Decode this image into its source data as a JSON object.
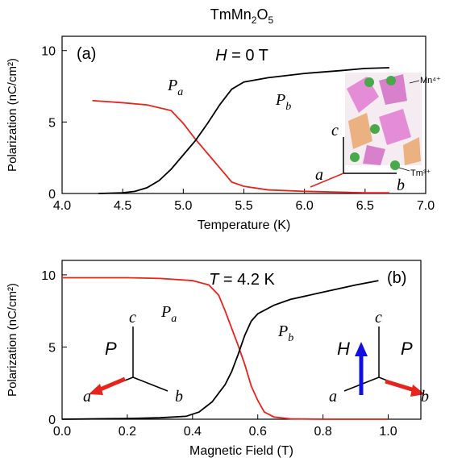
{
  "title_parts": [
    "TmMn",
    "2",
    "O",
    "5"
  ],
  "chart_data": [
    {
      "type": "line",
      "panel": "(a)",
      "x_label": "Temperature (K)",
      "y_label": "Polarization (nC/cm²)",
      "xlim": [
        4.0,
        7.0
      ],
      "ylim": [
        0,
        11
      ],
      "xticks": [
        {
          "value": 4.0,
          "label": "4.0"
        },
        {
          "value": 4.5,
          "label": "4.5"
        },
        {
          "value": 5.0,
          "label": "5.0"
        },
        {
          "value": 5.5,
          "label": "5.5"
        },
        {
          "value": 6.0,
          "label": "6.0"
        },
        {
          "value": 6.5,
          "label": "6.5"
        },
        {
          "value": 7.0,
          "label": "7.0"
        }
      ],
      "yticks": [
        0,
        5,
        10
      ],
      "field": {
        "var": "H",
        "rest": " = 0 T"
      },
      "ions": [
        "Mn⁴⁺",
        "Tm³⁺"
      ],
      "axes_labels": [
        "a",
        "b",
        "c"
      ],
      "series": [
        {
          "name": "P",
          "subscript": "a",
          "color": "#e8231b",
          "x": [
            4.25,
            4.5,
            4.7,
            4.9,
            5.0,
            5.1,
            5.2,
            5.3,
            5.4,
            5.5,
            5.7,
            6.0,
            6.5,
            6.7
          ],
          "values": [
            6.5,
            6.35,
            6.2,
            5.8,
            4.9,
            3.8,
            2.8,
            1.8,
            0.8,
            0.5,
            0.25,
            0.15,
            0.05,
            0.05
          ]
        },
        {
          "name": "P",
          "subscript": "b",
          "color": "#000000",
          "x": [
            4.3,
            4.5,
            4.6,
            4.7,
            4.8,
            4.9,
            5.0,
            5.1,
            5.2,
            5.3,
            5.4,
            5.5,
            5.7,
            6.0,
            6.3,
            6.5,
            6.7
          ],
          "values": [
            0,
            0.05,
            0.15,
            0.4,
            0.9,
            1.7,
            2.7,
            3.7,
            4.9,
            6.2,
            7.3,
            7.8,
            8.1,
            8.4,
            8.6,
            8.75,
            8.8
          ]
        }
      ]
    },
    {
      "type": "line",
      "panel": "(b)",
      "x_label": "Magnetic Field (T)",
      "y_label": "Polarization (nC/cm²)",
      "xlim": [
        0,
        1.1
      ],
      "ylim": [
        0,
        11
      ],
      "xticks": [
        {
          "value": 0,
          "label": "0.0"
        },
        {
          "value": 0.2,
          "label": "0.2"
        },
        {
          "value": 0.4,
          "label": "0.4"
        },
        {
          "value": 0.6,
          "label": "0.6"
        },
        {
          "value": 0.8,
          "label": "0.8"
        },
        {
          "value": 1.0,
          "label": "1.0"
        }
      ],
      "yticks": [
        0,
        5,
        10
      ],
      "field": {
        "var": "T",
        "rest": " = 4.2 K"
      },
      "vectors": [
        "P",
        "H"
      ],
      "axes_labels": [
        "a",
        "b",
        "c"
      ],
      "series": [
        {
          "name": "P",
          "subscript": "a",
          "color": "#e8231b",
          "x": [
            0,
            0.2,
            0.3,
            0.4,
            0.45,
            0.48,
            0.5,
            0.52,
            0.54,
            0.56,
            0.58,
            0.6,
            0.62,
            0.65,
            0.7,
            0.8,
            1.0
          ],
          "values": [
            9.8,
            9.8,
            9.75,
            9.6,
            9.3,
            8.6,
            7.5,
            6.3,
            5.1,
            3.8,
            2.3,
            1.3,
            0.5,
            0.15,
            0.03,
            0,
            0
          ]
        },
        {
          "name": "P",
          "subscript": "b",
          "color": "#000000",
          "x": [
            0,
            0.2,
            0.3,
            0.38,
            0.42,
            0.46,
            0.5,
            0.52,
            0.54,
            0.56,
            0.58,
            0.6,
            0.65,
            0.7,
            0.8,
            0.9,
            0.97
          ],
          "values": [
            0,
            0.05,
            0.1,
            0.2,
            0.5,
            1.2,
            2.4,
            3.3,
            4.5,
            5.8,
            6.8,
            7.3,
            7.9,
            8.3,
            8.8,
            9.3,
            9.6
          ]
        }
      ]
    }
  ]
}
